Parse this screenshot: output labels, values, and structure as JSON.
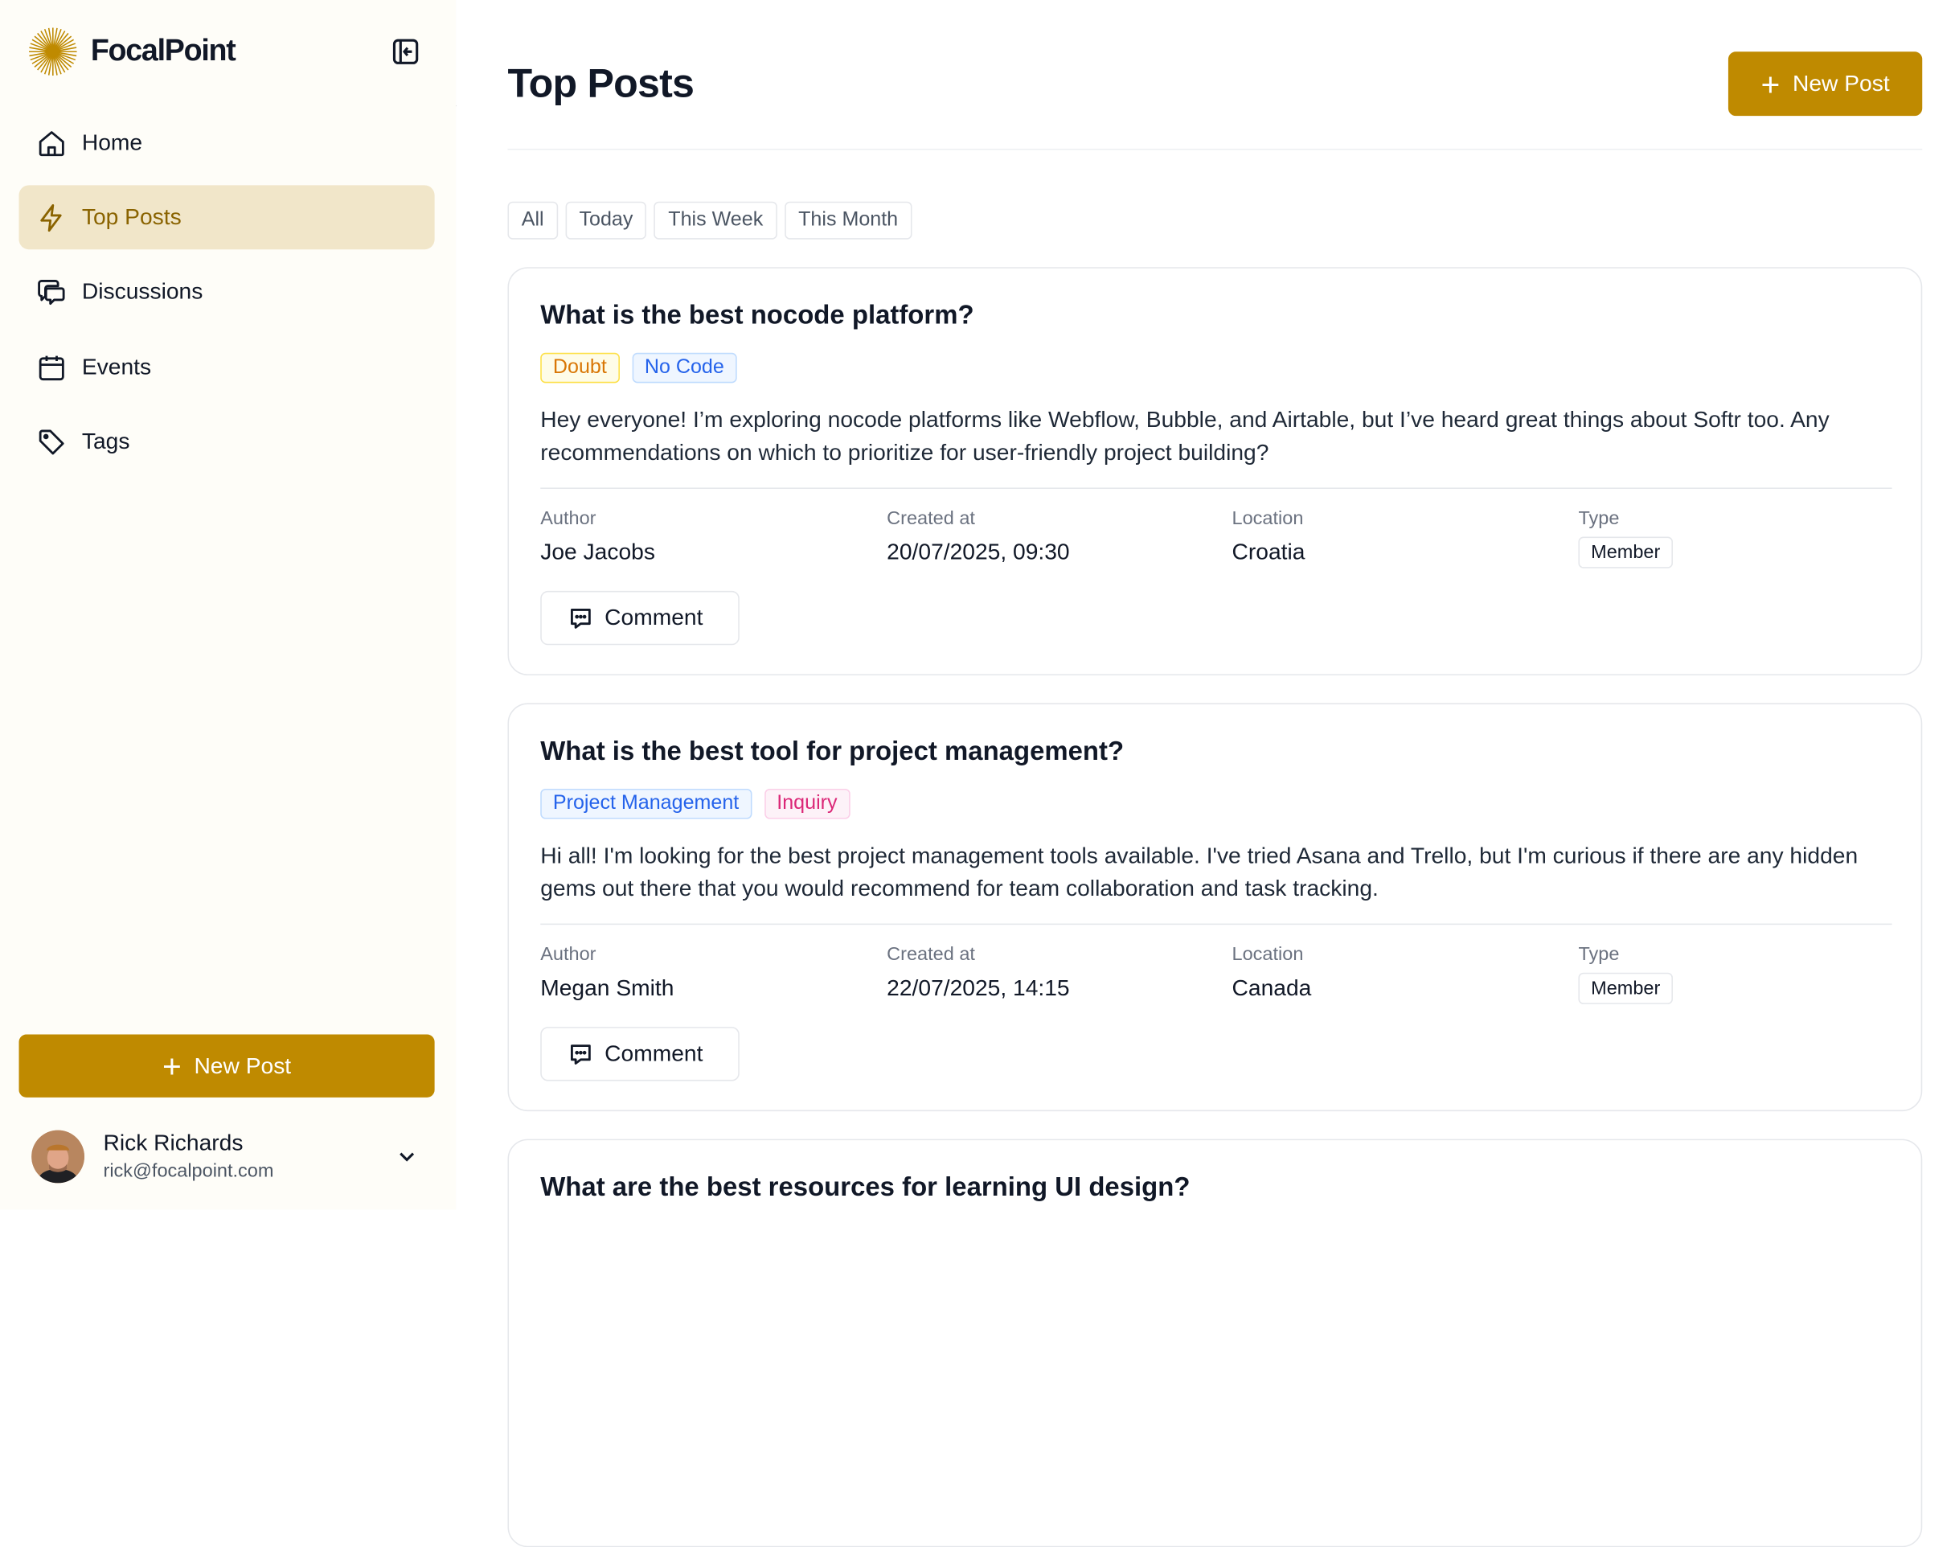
{
  "app": {
    "name": "FocalPoint",
    "brand_color": "#bf8a00"
  },
  "sidebar": {
    "items": [
      {
        "label": "Home",
        "icon": "home-icon"
      },
      {
        "label": "Top Posts",
        "icon": "lightning-icon",
        "active": true
      },
      {
        "label": "Discussions",
        "icon": "chat-bubbles-icon"
      },
      {
        "label": "Events",
        "icon": "calendar-icon"
      },
      {
        "label": "Tags",
        "icon": "tag-icon"
      }
    ],
    "new_post_label": "New Post",
    "user": {
      "name": "Rick Richards",
      "email": "rick@focalpoint.com"
    }
  },
  "header": {
    "title": "Top Posts",
    "new_post_label": "New Post"
  },
  "filters": [
    "All",
    "Today",
    "This Week",
    "This Month"
  ],
  "meta_labels": {
    "author": "Author",
    "created": "Created at",
    "location": "Location",
    "type": "Type"
  },
  "comment_label": "Comment",
  "posts": [
    {
      "title": "What is the best nocode platform?",
      "tags": [
        {
          "label": "Doubt",
          "color": "yellow"
        },
        {
          "label": "No Code",
          "color": "blue"
        }
      ],
      "body": "Hey everyone! I’m exploring nocode platforms like Webflow, Bubble, and Airtable, but I’ve heard great things about Softr too. Any recommendations on which to prioritize for user-friendly project building?",
      "author": "Joe Jacobs",
      "created": "20/07/2025, 09:30",
      "location": "Croatia",
      "type": "Member"
    },
    {
      "title": "What is the best tool for project management?",
      "tags": [
        {
          "label": "Project Management",
          "color": "blue"
        },
        {
          "label": "Inquiry",
          "color": "pink"
        }
      ],
      "body": "Hi all! I'm looking for the best project management tools available. I've tried Asana and Trello, but I'm curious if there are any hidden gems out there that you would recommend for team collaboration and task tracking.",
      "author": "Megan Smith",
      "created": "22/07/2025, 14:15",
      "location": "Canada",
      "type": "Member"
    },
    {
      "title": "What are the best resources for learning UI design?"
    }
  ]
}
